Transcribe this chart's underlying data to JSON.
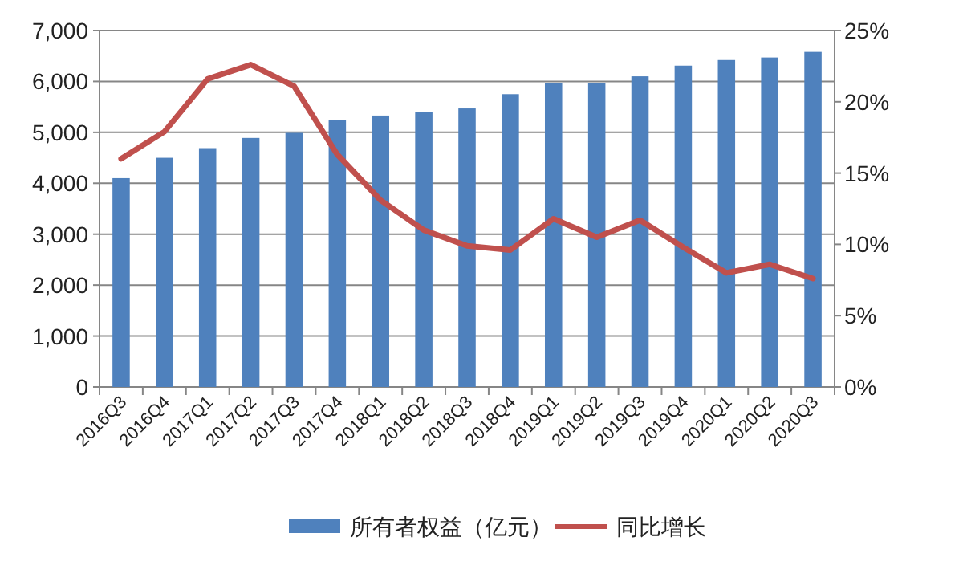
{
  "chart_data": {
    "type": "bar",
    "categories": [
      "2016Q3",
      "2016Q4",
      "2017Q1",
      "2017Q2",
      "2017Q3",
      "2017Q4",
      "2018Q1",
      "2018Q2",
      "2018Q3",
      "2018Q4",
      "2019Q1",
      "2019Q2",
      "2019Q3",
      "2019Q4",
      "2020Q1",
      "2020Q2",
      "2020Q3"
    ],
    "series": [
      {
        "name": "所有者权益（亿元）",
        "color": "#4f81bd",
        "values": [
          4100,
          4500,
          4690,
          4890,
          4990,
          5250,
          5330,
          5400,
          5470,
          5750,
          5970,
          5970,
          6100,
          6310,
          6420,
          6470,
          6580
        ]
      },
      {
        "name": "同比增长",
        "type": "line",
        "axis": "y2",
        "color": "#c0504d",
        "values": [
          16.0,
          17.9,
          21.6,
          22.6,
          21.1,
          16.3,
          13.1,
          11.0,
          9.9,
          9.6,
          11.8,
          10.5,
          11.7,
          9.8,
          8.0,
          8.6,
          7.6
        ]
      }
    ],
    "ylim": [
      0,
      7000
    ],
    "yticks": [
      {
        "value": 0,
        "label": "0"
      },
      {
        "value": 1000,
        "label": "1,000"
      },
      {
        "value": 2000,
        "label": "2,000"
      },
      {
        "value": 3000,
        "label": "3,000"
      },
      {
        "value": 4000,
        "label": "4,000"
      },
      {
        "value": 5000,
        "label": "5,000"
      },
      {
        "value": 6000,
        "label": "6,000"
      },
      {
        "value": 7000,
        "label": "7,000"
      }
    ],
    "y2lim": [
      0,
      25
    ],
    "y2ticks": [
      {
        "value": 0,
        "label": "0%"
      },
      {
        "value": 5,
        "label": "5%"
      },
      {
        "value": 10,
        "label": "10%"
      },
      {
        "value": 15,
        "label": "15%"
      },
      {
        "value": 20,
        "label": "20%"
      },
      {
        "value": 25,
        "label": "25%"
      }
    ],
    "grid": "y",
    "legend": "bottom",
    "marker": "none",
    "line_style": "solid"
  }
}
